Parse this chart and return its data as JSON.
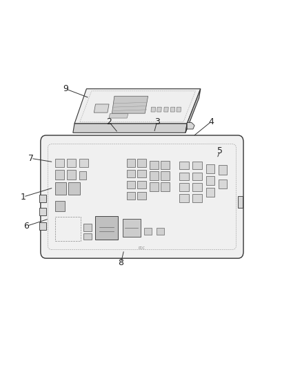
{
  "background_color": "#ffffff",
  "fig_width": 4.38,
  "fig_height": 5.33,
  "dpi": 100,
  "line_color": "#333333",
  "label_fontsize": 9,
  "box_face": "#f2f2f2",
  "inner_face": "#eeeeee",
  "comp_dark": "#555555",
  "comp_light": "#cccccc",
  "comp_mid": "#aaaaaa",
  "callouts": [
    [
      1,
      0.075,
      0.465,
      0.175,
      0.49
    ],
    [
      2,
      0.36,
      0.67,
      0.39,
      0.64
    ],
    [
      3,
      0.52,
      0.67,
      0.51,
      0.64
    ],
    [
      4,
      0.7,
      0.67,
      0.64,
      0.63
    ],
    [
      5,
      0.73,
      0.59,
      0.72,
      0.57
    ],
    [
      6,
      0.085,
      0.385,
      0.16,
      0.405
    ],
    [
      7,
      0.1,
      0.57,
      0.175,
      0.56
    ],
    [
      8,
      0.4,
      0.285,
      0.41,
      0.32
    ],
    [
      9,
      0.215,
      0.76,
      0.295,
      0.735
    ]
  ]
}
